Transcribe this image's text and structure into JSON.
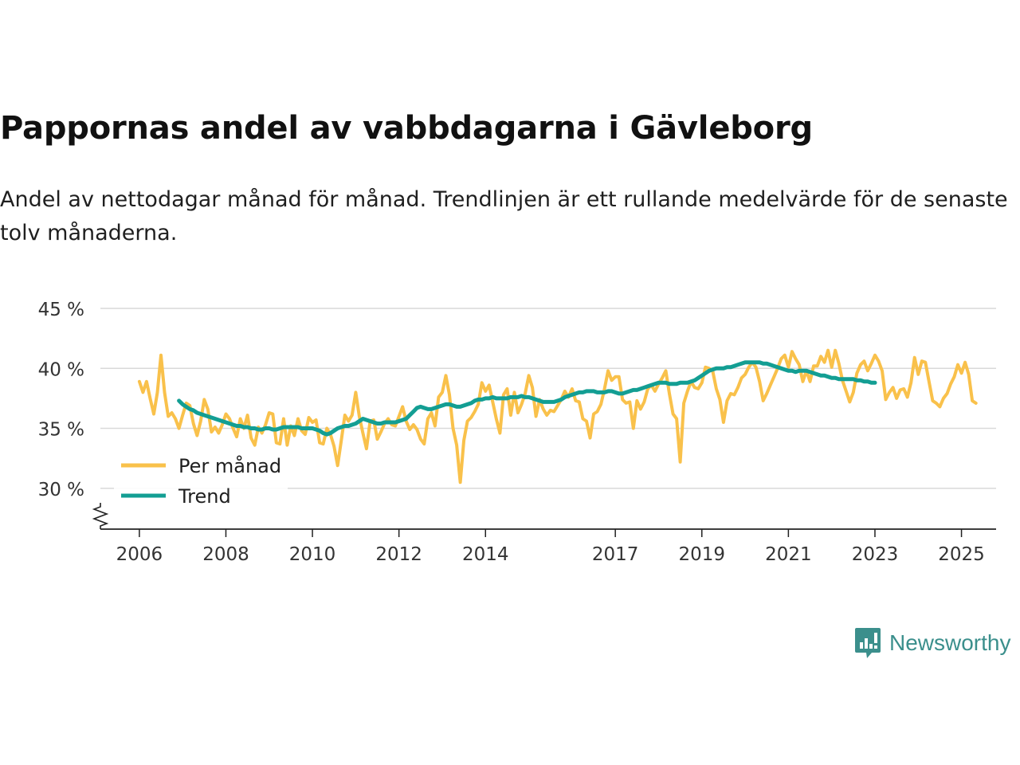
{
  "title": "Pappornas andel av vabbdagarna i Gävleborg",
  "subtitle": "Andel av nettodagar månad för månad. Trendlinjen är ett rullande medelvärde för de senaste tolv månaderna.",
  "brand": {
    "name": "Newsworthy",
    "icon": "newsworthy-logo-icon",
    "color": "#3b8f8c"
  },
  "colors": {
    "monthly": "#f9c14b",
    "trend": "#139e93",
    "grid": "#d9d9d9",
    "axis": "#222222"
  },
  "chart_data": {
    "type": "line",
    "title": "Pappornas andel av vabbdagarna i Gävleborg",
    "xlabel": "",
    "ylabel": "",
    "ylim": [
      26,
      45
    ],
    "xlim": [
      2005.1,
      2025.8
    ],
    "yticks": [
      30,
      35,
      40,
      45
    ],
    "ytick_labels": [
      "30 %",
      "35 %",
      "40 %",
      "45 %"
    ],
    "xticks": [
      2006,
      2008,
      2010,
      2012,
      2014,
      2017,
      2019,
      2021,
      2023,
      2025
    ],
    "xtick_labels": [
      "2006",
      "2008",
      "2010",
      "2012",
      "2014",
      "2017",
      "2019",
      "2021",
      "2023",
      "2025"
    ],
    "grid": true,
    "legend_position": "bottom-left",
    "axis_break": true,
    "series": [
      {
        "name": "Per månad",
        "color": "#f9c14b",
        "x_start": 2006.0,
        "x_step": 0.0833333,
        "values": [
          38.9,
          38.0,
          38.9,
          37.5,
          36.2,
          38.0,
          41.1,
          38.0,
          36.0,
          36.3,
          35.8,
          35.0,
          36.1,
          37.1,
          36.9,
          35.4,
          34.4,
          35.6,
          37.4,
          36.6,
          34.7,
          35.1,
          34.6,
          35.3,
          36.2,
          35.8,
          35.0,
          34.3,
          35.8,
          35.0,
          36.1,
          34.2,
          33.6,
          35.1,
          34.6,
          35.3,
          36.3,
          36.2,
          33.8,
          33.7,
          35.8,
          33.6,
          35.2,
          34.4,
          35.8,
          34.8,
          34.5,
          35.9,
          35.5,
          35.7,
          33.8,
          33.7,
          35.0,
          34.5,
          33.5,
          31.9,
          34.0,
          36.1,
          35.6,
          36.1,
          38.0,
          36.0,
          34.6,
          33.3,
          35.6,
          35.7,
          34.1,
          34.7,
          35.4,
          35.8,
          35.3,
          35.2,
          36.0,
          36.8,
          35.6,
          34.9,
          35.3,
          34.9,
          34.1,
          33.7,
          35.8,
          36.3,
          35.2,
          37.6,
          38.0,
          39.4,
          37.8,
          35.0,
          33.6,
          30.5,
          34.0,
          35.6,
          35.9,
          36.4,
          37.0,
          38.8,
          38.1,
          38.6,
          37.2,
          35.8,
          34.6,
          37.8,
          38.3,
          36.1,
          38.0,
          36.3,
          37.0,
          37.9,
          39.4,
          38.4,
          36.0,
          37.4,
          36.6,
          36.1,
          36.5,
          36.4,
          36.9,
          37.4,
          38.1,
          37.6,
          38.3,
          37.3,
          37.2,
          35.8,
          35.6,
          34.2,
          36.2,
          36.4,
          37.0,
          38.3,
          39.8,
          39.0,
          39.3,
          39.3,
          37.4,
          37.1,
          37.2,
          35.0,
          37.3,
          36.6,
          37.2,
          38.3,
          38.6,
          38.1,
          38.7,
          39.2,
          39.8,
          37.9,
          36.2,
          35.8,
          32.2,
          37.1,
          38.1,
          38.9,
          38.4,
          38.3,
          38.8,
          40.1,
          40.0,
          39.8,
          38.3,
          37.4,
          35.5,
          37.3,
          37.9,
          37.8,
          38.4,
          39.2,
          39.5,
          40.1,
          40.5,
          40.1,
          38.9,
          37.3,
          37.9,
          38.6,
          39.3,
          40.0,
          40.8,
          41.1,
          40.1,
          41.4,
          40.8,
          40.3,
          38.9,
          39.8,
          38.9,
          40.2,
          40.2,
          41.0,
          40.5,
          41.5,
          40.1,
          41.5,
          40.4,
          39.0,
          38.1,
          37.2,
          38.0,
          39.6,
          40.3,
          40.6,
          39.8,
          40.4,
          41.1,
          40.6,
          39.8,
          37.4,
          38.0,
          38.4,
          37.5,
          38.2,
          38.3,
          37.6,
          38.8,
          40.9,
          39.5,
          40.6,
          40.5,
          38.9,
          37.3,
          37.1,
          36.8,
          37.5,
          37.9,
          38.7,
          39.3,
          40.3,
          39.6,
          40.5,
          39.5,
          37.3,
          37.1
        ]
      },
      {
        "name": "Trend",
        "color": "#139e93",
        "x_start": 2006.9167,
        "x_step": 0.0833333,
        "values": [
          37.3,
          37.0,
          36.8,
          36.6,
          36.5,
          36.3,
          36.2,
          36.1,
          36.0,
          35.9,
          35.8,
          35.7,
          35.6,
          35.5,
          35.4,
          35.3,
          35.2,
          35.2,
          35.1,
          35.1,
          35.0,
          35.0,
          34.9,
          34.9,
          35.0,
          35.0,
          34.9,
          34.9,
          35.0,
          35.1,
          35.1,
          35.1,
          35.1,
          35.1,
          35.0,
          35.0,
          35.0,
          35.0,
          34.9,
          34.8,
          34.6,
          34.5,
          34.6,
          34.8,
          35.0,
          35.1,
          35.2,
          35.2,
          35.3,
          35.4,
          35.6,
          35.8,
          35.7,
          35.6,
          35.5,
          35.4,
          35.4,
          35.5,
          35.5,
          35.5,
          35.5,
          35.6,
          35.7,
          35.8,
          36.1,
          36.4,
          36.7,
          36.8,
          36.7,
          36.6,
          36.6,
          36.7,
          36.8,
          36.9,
          37.0,
          37.0,
          36.9,
          36.8,
          36.8,
          36.9,
          37.0,
          37.1,
          37.3,
          37.4,
          37.4,
          37.5,
          37.5,
          37.6,
          37.5,
          37.5,
          37.5,
          37.5,
          37.6,
          37.6,
          37.6,
          37.7,
          37.6,
          37.6,
          37.5,
          37.4,
          37.3,
          37.2,
          37.2,
          37.2,
          37.2,
          37.3,
          37.4,
          37.6,
          37.7,
          37.8,
          37.9,
          38.0,
          38.0,
          38.1,
          38.1,
          38.1,
          38.0,
          38.0,
          38.0,
          38.1,
          38.1,
          38.0,
          37.9,
          37.9,
          38.0,
          38.1,
          38.2,
          38.2,
          38.3,
          38.4,
          38.5,
          38.6,
          38.7,
          38.8,
          38.8,
          38.8,
          38.7,
          38.7,
          38.7,
          38.8,
          38.8,
          38.8,
          38.9,
          39.0,
          39.2,
          39.4,
          39.6,
          39.8,
          39.9,
          40.0,
          40.0,
          40.0,
          40.1,
          40.1,
          40.2,
          40.3,
          40.4,
          40.5,
          40.5,
          40.5,
          40.5,
          40.5,
          40.4,
          40.4,
          40.3,
          40.2,
          40.1,
          40.0,
          39.9,
          39.8,
          39.8,
          39.7,
          39.8,
          39.8,
          39.8,
          39.7,
          39.6,
          39.5,
          39.4,
          39.4,
          39.3,
          39.2,
          39.2,
          39.1,
          39.1,
          39.1,
          39.1,
          39.1,
          39.0,
          39.0,
          38.9,
          38.9,
          38.8,
          38.8
        ]
      }
    ]
  }
}
